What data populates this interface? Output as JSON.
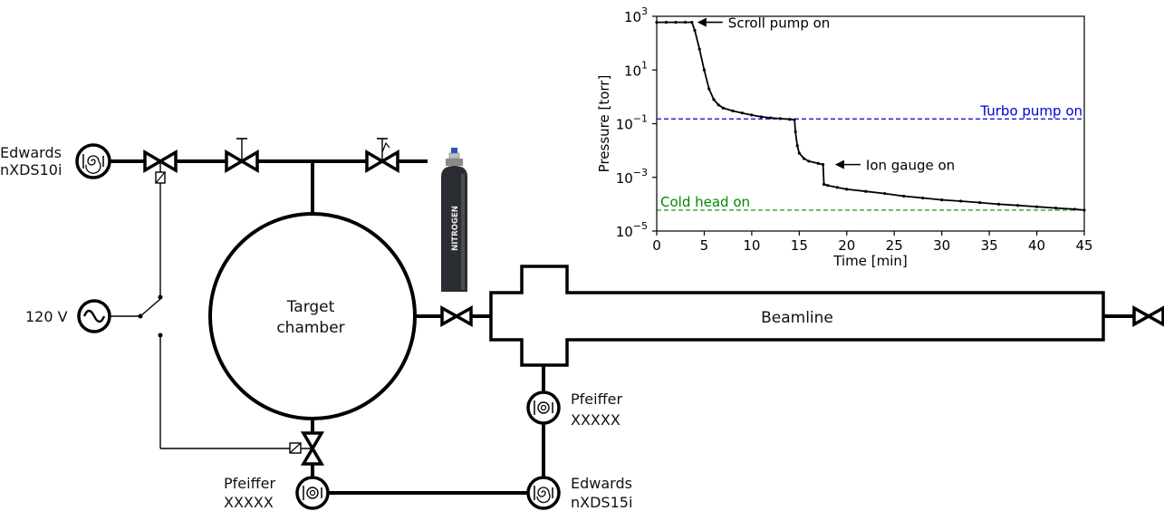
{
  "labels": {
    "edwards_top_name": "Edwards",
    "edwards_top_model": "nXDS10i",
    "power_supply": "120 V",
    "target_chamber_line1": "Target",
    "target_chamber_line2": "chamber",
    "nitrogen": "NITROGEN",
    "beamline": "Beamline",
    "pfeiffer_mid_name": "Pfeiffer",
    "pfeiffer_mid_model": "XXXXX",
    "pfeiffer_bottom_name": "Pfeiffer",
    "pfeiffer_bottom_model": "XXXXX",
    "edwards_bottom_name": "Edwards",
    "edwards_bottom_model": "nXDS15i"
  },
  "chart_data": {
    "type": "line",
    "xlabel": "Time [min]",
    "ylabel": "Pressure [torr]",
    "xlim": [
      0,
      45
    ],
    "ylim": [
      1e-05,
      1000.0
    ],
    "yscale": "log",
    "xticks": [
      0,
      5,
      10,
      15,
      20,
      25,
      30,
      35,
      40,
      45
    ],
    "yticks": [
      {
        "value": 1000.0,
        "base": "10",
        "exp": "3"
      },
      {
        "value": 10,
        "base": "10",
        "exp": "1"
      },
      {
        "value": 0.1,
        "base": "10",
        "exp": "−1"
      },
      {
        "value": 0.001,
        "base": "10",
        "exp": "−3"
      },
      {
        "value": 1e-05,
        "base": "10",
        "exp": "−5"
      }
    ],
    "grid": false,
    "series": [
      {
        "color": "#000000",
        "x": [
          0,
          1,
          2,
          3,
          3.7,
          4,
          4.5,
          5,
          5.5,
          6,
          6.5,
          7,
          8,
          9,
          10,
          11,
          12,
          13,
          14,
          14.5,
          14.6,
          14.8,
          15,
          15.5,
          16,
          17,
          17.5,
          17.6,
          18,
          19,
          20,
          22,
          24,
          26,
          28,
          30,
          32,
          34,
          36,
          38,
          40,
          42,
          44,
          45
        ],
        "y": [
          600,
          600,
          600,
          600,
          600,
          300,
          60,
          10,
          2,
          0.8,
          0.5,
          0.38,
          0.3,
          0.25,
          0.21,
          0.18,
          0.165,
          0.155,
          0.145,
          0.14,
          0.05,
          0.015,
          0.008,
          0.005,
          0.004,
          0.0033,
          0.003,
          0.00055,
          0.0005,
          0.00042,
          0.00036,
          0.0003,
          0.00025,
          0.0002,
          0.00017,
          0.000145,
          0.00013,
          0.000115,
          0.0001,
          9e-05,
          8e-05,
          7.2e-05,
          6.5e-05,
          6e-05
        ]
      }
    ],
    "reference_lines": [
      {
        "value": 0.15,
        "label": "Turbo pump on",
        "color": "#0000cc"
      },
      {
        "value": 6e-05,
        "label": "Cold head on",
        "color": "#008800"
      }
    ],
    "annotations": [
      {
        "text": "Scroll pump on",
        "x": 3.7,
        "y": 600
      },
      {
        "text": "Ion gauge on",
        "x": 18.2,
        "y": 0.003
      }
    ]
  }
}
